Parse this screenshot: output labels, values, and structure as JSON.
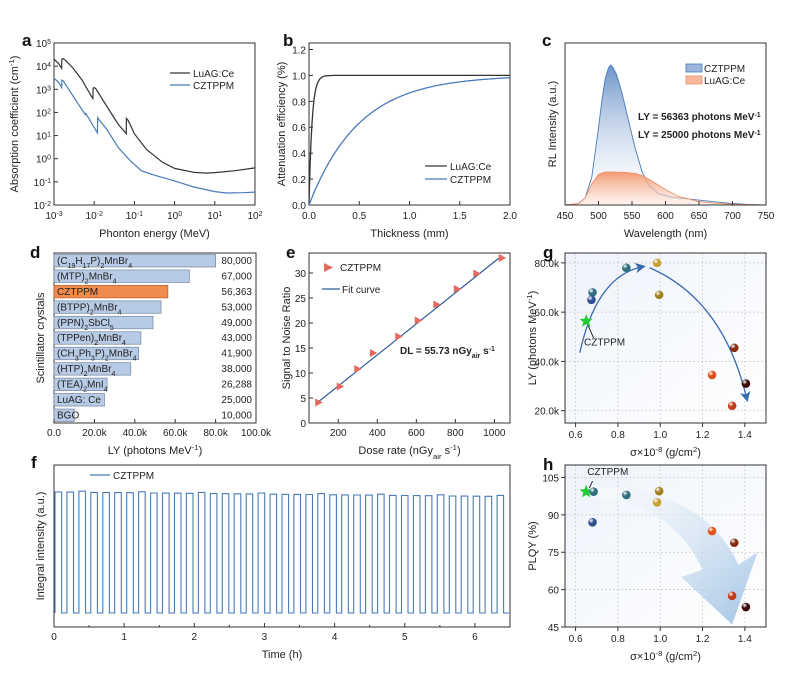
{
  "chart_data": [
    {
      "panel": "a",
      "type": "line",
      "title": "",
      "xlabel": "Phonton energy (MeV)",
      "ylabel": "Absorption coefficient (cm-1)",
      "xscale": "log",
      "yscale": "log",
      "xlim": [
        0.001,
        100
      ],
      "ylim": [
        0.01,
        100000
      ],
      "xticks": [
        "10-3",
        "10-2",
        "10-1",
        "100",
        "101",
        "102"
      ],
      "yticks": [
        "10-2",
        "10-1",
        "100",
        "101",
        "102",
        "103",
        "104",
        "105"
      ],
      "legend": {
        "position": "top-right",
        "entries": [
          "LuAG:Ce",
          "CZTPPM"
        ]
      },
      "series": [
        {
          "name": "LuAG:Ce",
          "color": "#333333",
          "x": [
            0.001,
            0.0013,
            0.00155,
            0.00156,
            0.0017,
            0.002,
            0.003,
            0.005,
            0.0085,
            0.0093,
            0.0094,
            0.01,
            0.011,
            0.02,
            0.04,
            0.063,
            0.0631,
            0.07,
            0.1,
            0.2,
            0.5,
            1,
            3,
            6,
            10,
            30,
            100
          ],
          "y": [
            20000,
            13000,
            8000,
            20000,
            21000,
            17000,
            8000,
            2500,
            500,
            400,
            1100,
            1200,
            1050,
            200,
            30,
            12,
            55,
            45,
            12,
            2.5,
            0.7,
            0.38,
            0.26,
            0.24,
            0.25,
            0.3,
            0.4
          ]
        },
        {
          "name": "CZTPPM",
          "color": "#4a7ab8",
          "x": [
            0.001,
            0.0013,
            0.00155,
            0.00156,
            0.0017,
            0.002,
            0.003,
            0.006,
            0.0062,
            0.012,
            0.0122,
            0.013,
            0.02,
            0.04,
            0.08,
            0.15,
            0.3,
            1,
            3,
            10,
            20,
            50,
            100
          ],
          "y": [
            3000,
            2000,
            1200,
            2500,
            2300,
            1500,
            500,
            80,
            90,
            13,
            60,
            50,
            20,
            3,
            0.8,
            0.3,
            0.2,
            0.11,
            0.06,
            0.038,
            0.033,
            0.034,
            0.036
          ]
        }
      ]
    },
    {
      "panel": "b",
      "type": "line",
      "xlabel": "Thickness (mm)",
      "ylabel": "Attenuation efficiency (%)",
      "xlim": [
        0,
        2
      ],
      "ylim": [
        0,
        1.25
      ],
      "xticks": [
        "0.0",
        "0.5",
        "1.0",
        "1.5",
        "2.0"
      ],
      "yticks": [
        "0.0",
        "0.2",
        "0.4",
        "0.6",
        "0.8",
        "1.0",
        "1.2"
      ],
      "legend": {
        "position": "bottom-right",
        "entries": [
          "LuAG:Ce",
          "CZTPPM"
        ]
      },
      "series": [
        {
          "name": "LuAG:Ce",
          "color": "#333333",
          "model": "1-exp(-x/0.03)"
        },
        {
          "name": "CZTPPM",
          "color": "#4a7ab8",
          "model": "1-exp(-x/0.5)"
        }
      ]
    },
    {
      "panel": "c",
      "type": "area",
      "xlabel": "Wavelength (nm)",
      "ylabel": "RL Intensity (a.u.)",
      "xlim": [
        450,
        750
      ],
      "xticks": [
        "450",
        "500",
        "550",
        "600",
        "650",
        "700",
        "750"
      ],
      "legend": {
        "position": "top-right",
        "entries": [
          "CZTPPM",
          "LuAG:Ce"
        ]
      },
      "annotations": [
        "LY = 56363 photons MeV-1",
        "LY = 25000 photons MeV-1"
      ],
      "series": [
        {
          "name": "CZTPPM",
          "color": "#4a7ab8",
          "x": [
            450,
            470,
            480,
            490,
            500,
            505,
            510,
            515,
            518,
            522,
            527,
            535,
            545,
            555,
            565,
            575,
            590,
            610,
            630,
            660,
            690,
            720,
            750
          ],
          "y": [
            0,
            0.01,
            0.05,
            0.2,
            0.55,
            0.75,
            0.9,
            0.98,
            1.0,
            0.98,
            0.93,
            0.8,
            0.6,
            0.4,
            0.24,
            0.14,
            0.08,
            0.055,
            0.045,
            0.03,
            0.015,
            0.005,
            0
          ]
        },
        {
          "name": "LuAG:Ce",
          "color": "#f0926a",
          "x": [
            450,
            470,
            480,
            490,
            500,
            510,
            520,
            540,
            555,
            565,
            580,
            600,
            620,
            650,
            680,
            710,
            750
          ],
          "y": [
            0,
            0.01,
            0.05,
            0.15,
            0.22,
            0.235,
            0.235,
            0.232,
            0.225,
            0.21,
            0.17,
            0.11,
            0.06,
            0.025,
            0.01,
            0.004,
            0
          ]
        }
      ]
    },
    {
      "panel": "d",
      "type": "bar",
      "orientation": "horizontal",
      "xlabel": "LY (photons MeV-1)",
      "ylabel": "Scintillator crystals",
      "xlim": [
        0,
        100000
      ],
      "xticks": [
        "0.0",
        "20.0k",
        "40.0k",
        "60.0k",
        "80.0k",
        "100.0k"
      ],
      "categories": [
        "(C19H17P)2MnBr4",
        "(MTP)2MnBr4",
        "CZTPPM",
        "(BTPP)2MnBr4",
        "(PPN)2SbCl5",
        "(TPPen)2MnBr4",
        "(CH3Ph3P)2MnBr4",
        "(HTP)2MnBr4",
        "(TEA)2MnI4",
        "LuAG: Ce",
        "BGO"
      ],
      "values": [
        80000,
        67000,
        56363,
        53000,
        49000,
        43000,
        41900,
        38000,
        26288,
        25000,
        10000
      ],
      "value_labels": [
        "80,000",
        "67,000",
        "56,363",
        "53,000",
        "49,000",
        "43,000",
        "41,900",
        "38,000",
        "26,288",
        "25,000",
        "10,000"
      ],
      "highlight": "CZTPPM",
      "colors": {
        "bar": "#b8cbe6",
        "highlight": "#f08a4e"
      }
    },
    {
      "panel": "e",
      "type": "scatter",
      "xlabel": "Dose rate (nGyair s-1)",
      "ylabel": "Signal to Noise Ratio",
      "xlim": [
        50,
        1080
      ],
      "ylim": [
        0,
        34
      ],
      "xticks": [
        "200",
        "400",
        "600",
        "800",
        "1000"
      ],
      "yticks": [
        "0",
        "5",
        "10",
        "15",
        "20",
        "25",
        "30"
      ],
      "legend": {
        "position": "top-left",
        "entries": [
          "CZTPPM",
          "Fit curve"
        ]
      },
      "annotation": "DL = 55.73 nGyair s-1",
      "series": [
        {
          "name": "CZTPPM",
          "marker": "triangle-right",
          "color": "#e8685e",
          "x": [
            100,
            210,
            300,
            380,
            510,
            610,
            705,
            810,
            910,
            1040
          ],
          "y": [
            4.1,
            7.3,
            10.8,
            14.0,
            17.3,
            20.5,
            23.7,
            26.8,
            29.9,
            33.0
          ]
        },
        {
          "name": "Fit curve",
          "type": "line",
          "color": "#2e5c9a",
          "x": [
            100,
            1040
          ],
          "y": [
            4.3,
            33.5
          ]
        }
      ]
    },
    {
      "panel": "f",
      "type": "line",
      "xlabel": "Time (h)",
      "ylabel": "Integral intensity (a.u.)",
      "xlim": [
        0,
        6.5
      ],
      "xticks": [
        "0",
        "1",
        "2",
        "3",
        "4",
        "5",
        "6"
      ],
      "legend": {
        "position": "top-left",
        "entries": [
          "CZTPPM"
        ]
      },
      "series": [
        {
          "name": "CZTPPM",
          "color": "#4a7ab8",
          "pattern": "square-wave",
          "cycles": 38,
          "high": 1.0,
          "low": 0.0,
          "x_start": 0,
          "x_end": 6.5
        }
      ]
    },
    {
      "panel": "g",
      "type": "scatter",
      "xlabel": "σ×10-8 (g/cm2)",
      "ylabel": "LY (photons MeV-1)",
      "xlim": [
        0.55,
        1.5
      ],
      "ylim": [
        15000,
        84000
      ],
      "xticks": [
        "0.6",
        "0.8",
        "1.0",
        "1.2",
        "1.4"
      ],
      "yticks": [
        "20.0k",
        "40.0k",
        "60.0k",
        "80.0k"
      ],
      "grid": true,
      "annotation": "CZTPPM",
      "points": [
        {
          "x": 0.65,
          "y": 56363,
          "marker": "star",
          "color": "#22cc33"
        },
        {
          "x": 0.68,
          "y": 68000,
          "color": "#2f6f7f"
        },
        {
          "x": 0.675,
          "y": 65000,
          "color": "#2f4f8f"
        },
        {
          "x": 0.84,
          "y": 78000,
          "color": "#2f6f7f"
        },
        {
          "x": 0.985,
          "y": 80000,
          "color": "#c9a030"
        },
        {
          "x": 0.995,
          "y": 67000,
          "color": "#a08020"
        },
        {
          "x": 1.245,
          "y": 34500,
          "color": "#e0501a"
        },
        {
          "x": 1.35,
          "y": 45500,
          "color": "#8a2a10"
        },
        {
          "x": 1.34,
          "y": 22000,
          "color": "#c03a18"
        },
        {
          "x": 1.405,
          "y": 31000,
          "color": "#3a0a08"
        }
      ]
    },
    {
      "panel": "h",
      "type": "scatter",
      "xlabel": "σ×10-8 (g/cm2)",
      "ylabel": "PLQY (%)",
      "xlim": [
        0.55,
        1.5
      ],
      "ylim": [
        45,
        110
      ],
      "xticks": [
        "0.6",
        "0.8",
        "1.0",
        "1.2",
        "1.4"
      ],
      "yticks": [
        "45",
        "60",
        "75",
        "90",
        "105"
      ],
      "grid": true,
      "annotation": "CZTPPM",
      "points": [
        {
          "x": 0.65,
          "y": 99.3,
          "marker": "star",
          "color": "#22cc33"
        },
        {
          "x": 0.685,
          "y": 99.3,
          "color": "#2f6f7f"
        },
        {
          "x": 0.68,
          "y": 87,
          "color": "#2f4f8f"
        },
        {
          "x": 0.84,
          "y": 98,
          "color": "#2f6f7f"
        },
        {
          "x": 0.995,
          "y": 99.5,
          "color": "#a08020"
        },
        {
          "x": 0.985,
          "y": 95,
          "color": "#c9a030"
        },
        {
          "x": 1.245,
          "y": 83.5,
          "color": "#e0501a"
        },
        {
          "x": 1.35,
          "y": 78.8,
          "color": "#8a2a10"
        },
        {
          "x": 1.34,
          "y": 57.5,
          "color": "#c03a18"
        },
        {
          "x": 1.405,
          "y": 53,
          "color": "#3a0a08"
        }
      ]
    }
  ]
}
